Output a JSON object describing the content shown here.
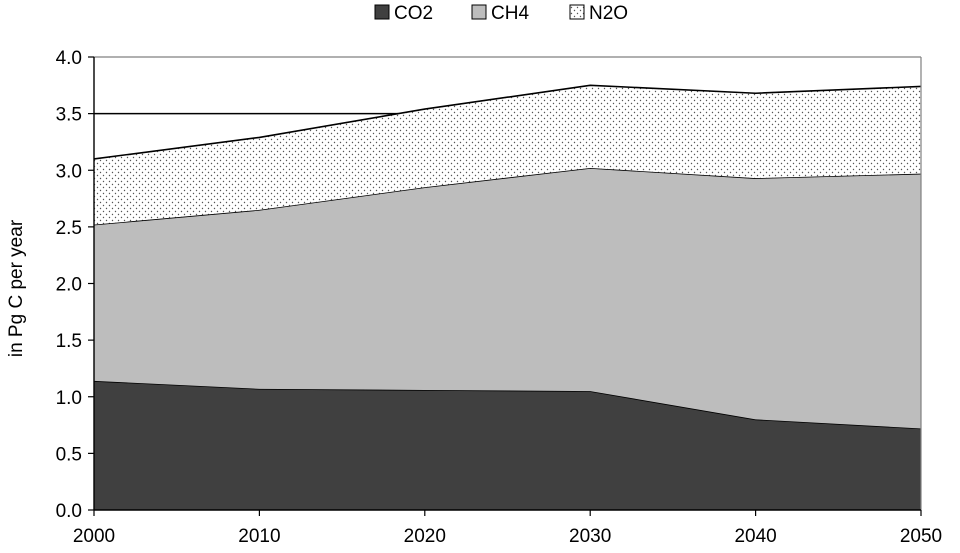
{
  "chart_data": {
    "type": "area",
    "stacked": true,
    "x": [
      2000,
      2010,
      2020,
      2030,
      2040,
      2050
    ],
    "series": [
      {
        "name": "CO2",
        "values": [
          1.14,
          1.07,
          1.06,
          1.05,
          0.8,
          0.72
        ]
      },
      {
        "name": "CH4",
        "values": [
          1.38,
          1.58,
          1.79,
          1.97,
          2.13,
          2.25
        ]
      },
      {
        "name": "N2O",
        "values": [
          0.58,
          0.64,
          0.69,
          0.73,
          0.75,
          0.77
        ]
      }
    ],
    "title": "",
    "xlabel": "",
    "ylabel": "in Pg C per year",
    "ylim": [
      0,
      4.0
    ],
    "xlim": [
      2000,
      2050
    ],
    "yticks": [
      "0.0",
      "0.5",
      "1.0",
      "1.5",
      "2.0",
      "2.5",
      "3.0",
      "3.5",
      "4.0"
    ],
    "xticks": [
      "2000",
      "2010",
      "2020",
      "2030",
      "2040",
      "2050"
    ],
    "reference_line": 3.5,
    "legend_position": "top",
    "grid": false,
    "colors": {
      "CO2": "#404040",
      "CH4": "#bdbdbd",
      "N2O": "#ffffff"
    }
  }
}
